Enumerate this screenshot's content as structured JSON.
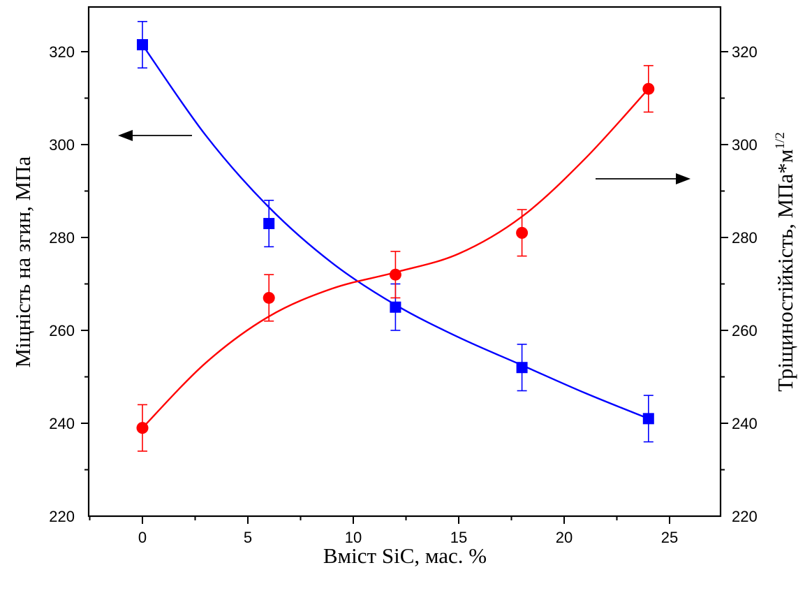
{
  "chart_data": {
    "type": "scatter",
    "xlabel": "Вміст SiC, мас. %",
    "ylabel_left": "Міцність на згин, МПа",
    "ylabel_right_main": "Тріщиностійкість, МПа*м",
    "ylabel_right_sup": "1/2",
    "xlim": [
      -2.5,
      29
    ],
    "ylim": [
      220,
      330
    ],
    "x_ticks": [
      0,
      5,
      10,
      15,
      20,
      25
    ],
    "y_ticks": [
      220,
      240,
      260,
      280,
      300,
      320
    ],
    "grid": false,
    "series": [
      {
        "axis": "left",
        "color": "#0000ff",
        "marker": "square",
        "x": [
          0,
          6,
          12,
          18,
          24
        ],
        "y": [
          321.5,
          283,
          265,
          252,
          241
        ],
        "error": [
          5,
          5,
          5,
          5,
          5
        ],
        "fit_x": [
          0,
          3,
          6,
          9,
          12,
          15,
          18,
          21,
          24
        ],
        "fit_y": [
          321.5,
          302,
          286.5,
          274.5,
          265.5,
          258.5,
          252.5,
          246.5,
          241
        ]
      },
      {
        "axis": "right",
        "color": "#ff0000",
        "marker": "circle",
        "x": [
          0,
          6,
          12,
          18,
          24
        ],
        "y": [
          239,
          267,
          272,
          281,
          312
        ],
        "error": [
          5,
          5,
          5,
          5,
          5
        ],
        "fit_x": [
          0,
          3,
          6,
          9,
          12,
          15,
          18,
          21,
          24
        ],
        "fit_y": [
          239,
          253,
          263,
          269,
          272.5,
          276.5,
          284.5,
          297,
          312
        ]
      }
    ],
    "annotations": [
      {
        "direction": "left",
        "points_to": "left axis"
      },
      {
        "direction": "right",
        "points_to": "right axis"
      }
    ]
  }
}
